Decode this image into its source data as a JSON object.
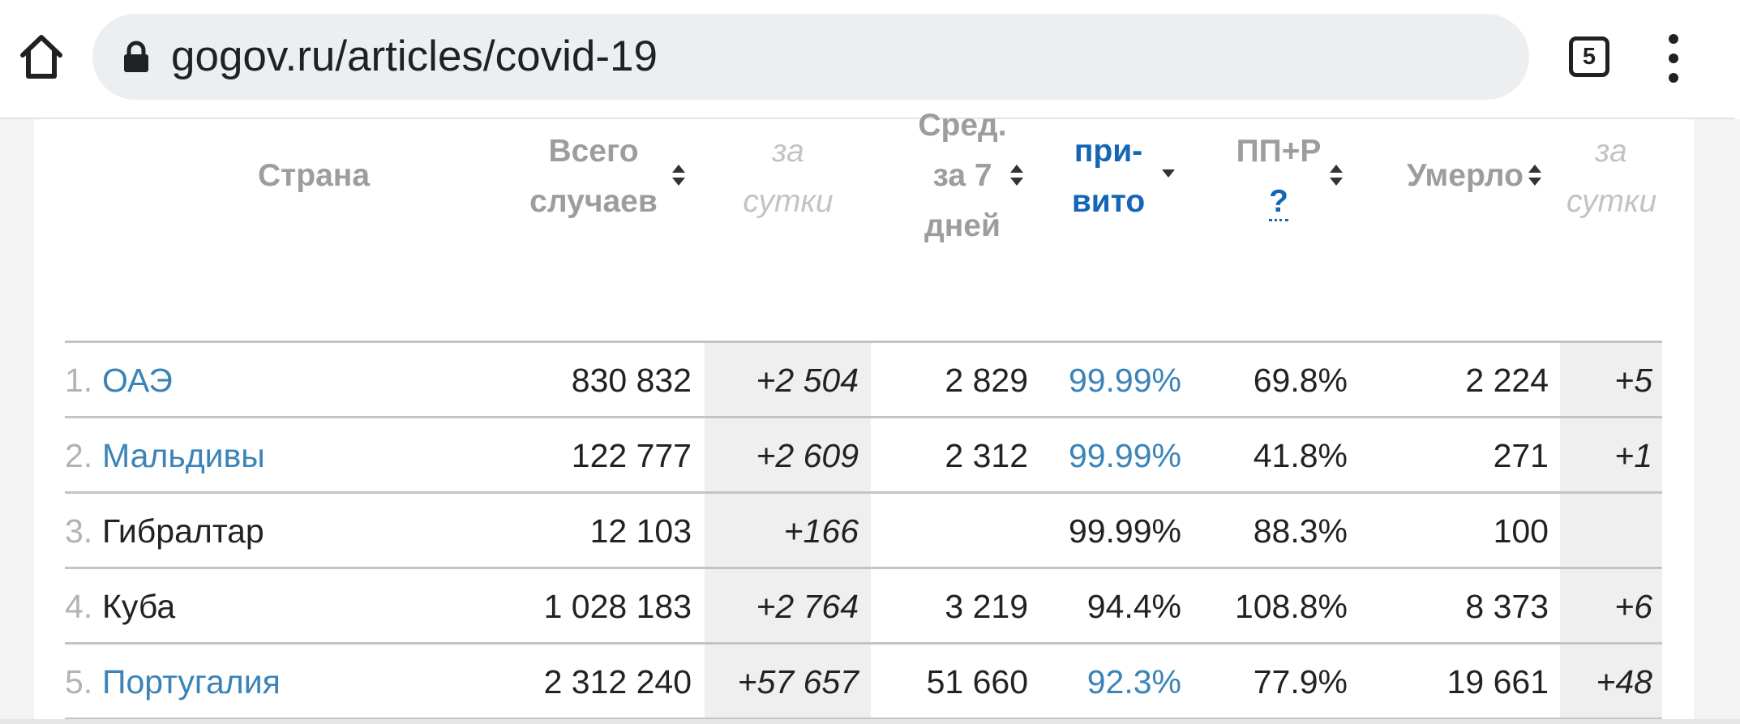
{
  "browser": {
    "url": "gogov.ru/articles/covid-19",
    "tab_count": "5",
    "icons": [
      "home-icon",
      "lock-icon",
      "tabs-icon",
      "more-vert-icon"
    ]
  },
  "table": {
    "headers": {
      "country": "Страна",
      "total_line1": "Всего",
      "total_line2": "случаев",
      "total_day_line1": "за",
      "total_day_line2": "сутки",
      "avg_line1": "Сред.",
      "avg_line2": "за 7",
      "avg_line3": "дней",
      "vax_line1": "при-",
      "vax_line2": "вито",
      "pp_line1": "ПП+Р",
      "pp_help": "?",
      "deaths": "Умерло",
      "deaths_day_line1": "за",
      "deaths_day_line2": "сутки"
    },
    "rows": [
      {
        "num": "1.",
        "country": "ОАЭ",
        "linked": true,
        "total": "830 832",
        "day": "+2 504",
        "avg": "2 829",
        "vax": "99.99%",
        "vax_linked": true,
        "pp": "69.8%",
        "deaths": "2 224",
        "deaths_day": "+5"
      },
      {
        "num": "2.",
        "country": "Мальдивы",
        "linked": true,
        "total": "122 777",
        "day": "+2 609",
        "avg": "2 312",
        "vax": "99.99%",
        "vax_linked": true,
        "pp": "41.8%",
        "deaths": "271",
        "deaths_day": "+1"
      },
      {
        "num": "3.",
        "country": "Гибралтар",
        "linked": false,
        "total": "12 103",
        "day": "+166",
        "avg": "",
        "vax": "99.99%",
        "vax_linked": false,
        "pp": "88.3%",
        "deaths": "100",
        "deaths_day": ""
      },
      {
        "num": "4.",
        "country": "Куба",
        "linked": false,
        "total": "1 028 183",
        "day": "+2 764",
        "avg": "3 219",
        "vax": "94.4%",
        "vax_linked": false,
        "pp": "108.8%",
        "deaths": "8 373",
        "deaths_day": "+6"
      },
      {
        "num": "5.",
        "country": "Португалия",
        "linked": true,
        "total": "2 312 240",
        "day": "+57 657",
        "avg": "51 660",
        "vax": "92.3%",
        "vax_linked": true,
        "pp": "77.9%",
        "deaths": "19 661",
        "deaths_day": "+48"
      }
    ]
  },
  "colors": {
    "link": "#3b83b8",
    "active_header": "#1565b7",
    "header": "#9d9d9d",
    "shade": "#efefef"
  }
}
